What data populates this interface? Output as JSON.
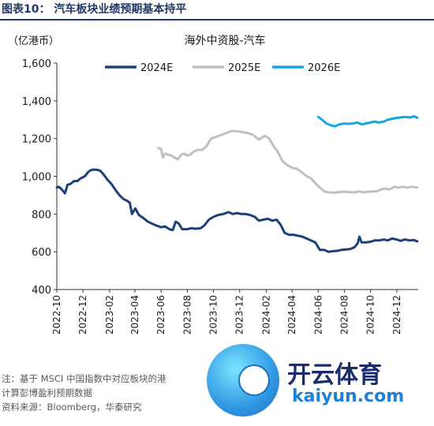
{
  "figure_title": "图表10：   汽车板块业绩预期基本持平",
  "notes": [
    "注：基于 MSCI 中国指数中对应板块的港",
    "计算彭博盈利预期数据"
  ],
  "source": "资料来源：Bloomberg，华泰研究",
  "watermark": {
    "brand": "开云体育",
    "url": "kaiyun.com"
  },
  "chart_data": {
    "type": "line",
    "title": "海外中资股-汽车",
    "ylabel": "（亿港币）",
    "xlabel": "",
    "ylim": [
      400,
      1600
    ],
    "yticks": [
      "1,600",
      "1,400",
      "1,200",
      "1,000",
      "800",
      "600",
      "400"
    ],
    "ytick_values": [
      1600,
      1400,
      1200,
      1000,
      800,
      600,
      400
    ],
    "xticks": [
      "2022-10",
      "2022-12",
      "2023-02",
      "2023-04",
      "2023-06",
      "2023-08",
      "2023-10",
      "2023-12",
      "2024-02",
      "2024-04",
      "2024-06",
      "2024-08",
      "2024-10",
      "2024-12"
    ],
    "xlim": [
      "2022-10-01",
      "2025-01-20"
    ],
    "grid": false,
    "legend_position": "top",
    "series": [
      {
        "name": "2024E",
        "color": "#1f3f77",
        "points": [
          [
            "2022-10-01",
            940
          ],
          [
            "2022-10-05",
            945
          ],
          [
            "2022-10-12",
            932
          ],
          [
            "2022-10-20",
            910
          ],
          [
            "2022-10-26",
            955
          ],
          [
            "2022-11-02",
            960
          ],
          [
            "2022-11-10",
            975
          ],
          [
            "2022-11-18",
            975
          ],
          [
            "2022-11-26",
            990
          ],
          [
            "2022-12-05",
            1000
          ],
          [
            "2022-12-14",
            1025
          ],
          [
            "2022-12-22",
            1035
          ],
          [
            "2023-01-01",
            1035
          ],
          [
            "2023-01-10",
            1030
          ],
          [
            "2023-01-18",
            1010
          ],
          [
            "2023-01-26",
            985
          ],
          [
            "2023-02-05",
            960
          ],
          [
            "2023-02-14",
            930
          ],
          [
            "2023-02-24",
            900
          ],
          [
            "2023-03-05",
            880
          ],
          [
            "2023-03-14",
            870
          ],
          [
            "2023-03-20",
            860
          ],
          [
            "2023-03-25",
            800
          ],
          [
            "2023-04-02",
            830
          ],
          [
            "2023-04-10",
            795
          ],
          [
            "2023-04-20",
            780
          ],
          [
            "2023-05-01",
            760
          ],
          [
            "2023-05-10",
            750
          ],
          [
            "2023-05-20",
            740
          ],
          [
            "2023-06-01",
            730
          ],
          [
            "2023-06-10",
            735
          ],
          [
            "2023-06-20",
            720
          ],
          [
            "2023-06-28",
            715
          ],
          [
            "2023-07-05",
            760
          ],
          [
            "2023-07-12",
            750
          ],
          [
            "2023-07-20",
            720
          ],
          [
            "2023-08-01",
            720
          ],
          [
            "2023-08-10",
            725
          ],
          [
            "2023-08-20",
            722
          ],
          [
            "2023-09-01",
            725
          ],
          [
            "2023-09-10",
            740
          ],
          [
            "2023-09-20",
            770
          ],
          [
            "2023-10-01",
            785
          ],
          [
            "2023-10-12",
            795
          ],
          [
            "2023-10-24",
            800
          ],
          [
            "2023-11-05",
            810
          ],
          [
            "2023-11-15",
            800
          ],
          [
            "2023-11-25",
            805
          ],
          [
            "2023-12-05",
            800
          ],
          [
            "2023-12-15",
            800
          ],
          [
            "2023-12-25",
            795
          ],
          [
            "2024-01-05",
            785
          ],
          [
            "2024-01-15",
            765
          ],
          [
            "2024-01-25",
            770
          ],
          [
            "2024-02-05",
            775
          ],
          [
            "2024-02-15",
            765
          ],
          [
            "2024-02-25",
            770
          ],
          [
            "2024-03-05",
            745
          ],
          [
            "2024-03-15",
            700
          ],
          [
            "2024-03-25",
            690
          ],
          [
            "2024-04-05",
            690
          ],
          [
            "2024-04-15",
            685
          ],
          [
            "2024-04-25",
            680
          ],
          [
            "2024-05-05",
            670
          ],
          [
            "2024-05-15",
            660
          ],
          [
            "2024-05-25",
            650
          ],
          [
            "2024-06-05",
            610
          ],
          [
            "2024-06-15",
            610
          ],
          [
            "2024-06-25",
            600
          ],
          [
            "2024-07-05",
            603
          ],
          [
            "2024-07-15",
            605
          ],
          [
            "2024-07-25",
            610
          ],
          [
            "2024-08-05",
            612
          ],
          [
            "2024-08-15",
            615
          ],
          [
            "2024-08-25",
            625
          ],
          [
            "2024-09-01",
            645
          ],
          [
            "2024-09-05",
            680
          ],
          [
            "2024-09-10",
            650
          ],
          [
            "2024-09-20",
            650
          ],
          [
            "2024-10-01",
            653
          ],
          [
            "2024-10-10",
            660
          ],
          [
            "2024-10-20",
            660
          ],
          [
            "2024-11-01",
            665
          ],
          [
            "2024-11-10",
            660
          ],
          [
            "2024-11-20",
            670
          ],
          [
            "2024-12-01",
            665
          ],
          [
            "2024-12-10",
            658
          ],
          [
            "2024-12-20",
            665
          ],
          [
            "2025-01-01",
            660
          ],
          [
            "2025-01-10",
            662
          ],
          [
            "2025-01-18",
            655
          ]
        ]
      },
      {
        "name": "2025E",
        "color": "#c0c0c0",
        "points": [
          [
            "2023-05-25",
            1150
          ],
          [
            "2023-06-01",
            1145
          ],
          [
            "2023-06-05",
            1100
          ],
          [
            "2023-06-10",
            1120
          ],
          [
            "2023-06-18",
            1115
          ],
          [
            "2023-06-25",
            1110
          ],
          [
            "2023-07-02",
            1100
          ],
          [
            "2023-07-10",
            1090
          ],
          [
            "2023-07-18",
            1115
          ],
          [
            "2023-07-25",
            1120
          ],
          [
            "2023-08-01",
            1110
          ],
          [
            "2023-08-08",
            1115
          ],
          [
            "2023-08-15",
            1130
          ],
          [
            "2023-08-25",
            1140
          ],
          [
            "2023-09-05",
            1140
          ],
          [
            "2023-09-15",
            1160
          ],
          [
            "2023-09-25",
            1200
          ],
          [
            "2023-10-08",
            1210
          ],
          [
            "2023-10-20",
            1220
          ],
          [
            "2023-11-01",
            1230
          ],
          [
            "2023-11-12",
            1240
          ],
          [
            "2023-11-24",
            1240
          ],
          [
            "2023-12-05",
            1235
          ],
          [
            "2023-12-18",
            1230
          ],
          [
            "2024-01-01",
            1220
          ],
          [
            "2024-01-15",
            1195
          ],
          [
            "2024-01-28",
            1215
          ],
          [
            "2024-02-08",
            1200
          ],
          [
            "2024-02-18",
            1160
          ],
          [
            "2024-02-28",
            1130
          ],
          [
            "2024-03-10",
            1080
          ],
          [
            "2024-03-20",
            1060
          ],
          [
            "2024-04-01",
            1045
          ],
          [
            "2024-04-12",
            1040
          ],
          [
            "2024-04-22",
            1025
          ],
          [
            "2024-05-05",
            1000
          ],
          [
            "2024-05-15",
            990
          ],
          [
            "2024-05-25",
            965
          ],
          [
            "2024-06-05",
            940
          ],
          [
            "2024-06-15",
            920
          ],
          [
            "2024-06-25",
            915
          ],
          [
            "2024-07-05",
            913
          ],
          [
            "2024-07-15",
            915
          ],
          [
            "2024-07-25",
            918
          ],
          [
            "2024-08-05",
            918
          ],
          [
            "2024-08-15",
            915
          ],
          [
            "2024-08-25",
            915
          ],
          [
            "2024-09-05",
            920
          ],
          [
            "2024-09-15",
            915
          ],
          [
            "2024-09-25",
            918
          ],
          [
            "2024-10-05",
            920
          ],
          [
            "2024-10-15",
            920
          ],
          [
            "2024-10-25",
            930
          ],
          [
            "2024-11-05",
            935
          ],
          [
            "2024-11-15",
            930
          ],
          [
            "2024-11-25",
            945
          ],
          [
            "2024-12-05",
            940
          ],
          [
            "2024-12-15",
            945
          ],
          [
            "2024-12-25",
            940
          ],
          [
            "2025-01-05",
            945
          ],
          [
            "2025-01-18",
            940
          ]
        ]
      },
      {
        "name": "2026E",
        "color": "#16a7e2",
        "points": [
          [
            "2024-06-01",
            1315
          ],
          [
            "2024-06-10",
            1300
          ],
          [
            "2024-06-20",
            1280
          ],
          [
            "2024-07-01",
            1270
          ],
          [
            "2024-07-10",
            1265
          ],
          [
            "2024-07-20",
            1275
          ],
          [
            "2024-08-01",
            1280
          ],
          [
            "2024-08-10",
            1278
          ],
          [
            "2024-08-20",
            1280
          ],
          [
            "2024-09-01",
            1285
          ],
          [
            "2024-09-10",
            1275
          ],
          [
            "2024-09-20",
            1280
          ],
          [
            "2024-10-01",
            1285
          ],
          [
            "2024-10-10",
            1290
          ],
          [
            "2024-10-20",
            1285
          ],
          [
            "2024-11-01",
            1290
          ],
          [
            "2024-11-10",
            1300
          ],
          [
            "2024-11-20",
            1305
          ],
          [
            "2024-12-01",
            1310
          ],
          [
            "2024-12-10",
            1312
          ],
          [
            "2024-12-20",
            1315
          ],
          [
            "2025-01-01",
            1312
          ],
          [
            "2025-01-10",
            1318
          ],
          [
            "2025-01-18",
            1310
          ]
        ]
      }
    ]
  }
}
